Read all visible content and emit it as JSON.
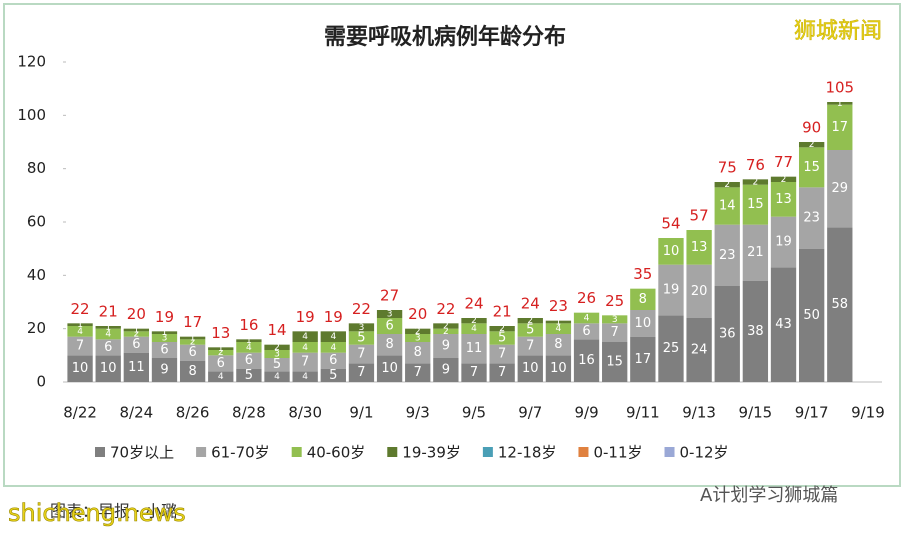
{
  "chart_data": {
    "type": "stacked_bar",
    "title": "需要呼吸机病例年龄分布",
    "categories": [
      "8/22",
      null,
      "8/24",
      null,
      "8/26",
      null,
      "8/28",
      null,
      "8/30",
      null,
      "9/1",
      null,
      "9/3",
      null,
      "9/5",
      null,
      "9/7",
      null,
      "9/9",
      null,
      "9/11",
      null,
      "9/13",
      null,
      "9/15",
      null,
      "9/17",
      null,
      "9/19"
    ],
    "series": [
      {
        "name": "70岁以上",
        "color": "#7f7f7f",
        "values": [
          10,
          10,
          11,
          9,
          8,
          4,
          5,
          4,
          4,
          5,
          7,
          10,
          7,
          9,
          7,
          7,
          10,
          10,
          16,
          15,
          17,
          25,
          24,
          36,
          38,
          43,
          50,
          58,
          null
        ]
      },
      {
        "name": "61-70岁",
        "color": "#a5a5a5",
        "values": [
          7,
          6,
          6,
          6,
          6,
          6,
          6,
          5,
          7,
          6,
          7,
          8,
          8,
          9,
          11,
          7,
          7,
          8,
          6,
          7,
          10,
          19,
          20,
          23,
          21,
          19,
          23,
          29,
          null
        ]
      },
      {
        "name": "40-60岁",
        "color": "#92bf50",
        "values": [
          4,
          4,
          2,
          3,
          2,
          2,
          4,
          3,
          4,
          4,
          5,
          6,
          3,
          2,
          4,
          5,
          5,
          4,
          4,
          3,
          8,
          10,
          13,
          14,
          15,
          13,
          15,
          17,
          null
        ]
      },
      {
        "name": "19-39岁",
        "color": "#5e7a2e",
        "values": [
          1,
          1,
          1,
          1,
          1,
          1,
          1,
          2,
          4,
          4,
          3,
          3,
          2,
          2,
          2,
          2,
          2,
          1,
          0,
          0,
          0,
          0,
          0,
          2,
          2,
          2,
          2,
          1,
          null
        ]
      },
      {
        "name": "12-18岁",
        "color": "#4a9fb6",
        "values": [
          0,
          0,
          0,
          0,
          0,
          0,
          0,
          0,
          0,
          0,
          0,
          0,
          0,
          0,
          0,
          0,
          0,
          0,
          0,
          0,
          0,
          0,
          0,
          0,
          0,
          0,
          0,
          0,
          null
        ]
      },
      {
        "name": "0-11岁",
        "color": "#e0813f",
        "values": [
          0,
          0,
          0,
          0,
          0,
          0,
          0,
          0,
          0,
          0,
          0,
          0,
          0,
          0,
          0,
          0,
          0,
          0,
          0,
          0,
          0,
          0,
          0,
          0,
          0,
          0,
          0,
          0,
          null
        ]
      },
      {
        "name": "0-12岁",
        "color": "#9aa8d6",
        "values": [
          0,
          0,
          0,
          0,
          0,
          0,
          0,
          0,
          0,
          0,
          0,
          0,
          0,
          0,
          0,
          0,
          0,
          0,
          0,
          0,
          0,
          0,
          0,
          0,
          0,
          0,
          0,
          0,
          null
        ]
      }
    ],
    "totals": [
      22,
      21,
      20,
      19,
      17,
      13,
      16,
      14,
      19,
      19,
      22,
      27,
      20,
      22,
      24,
      21,
      24,
      23,
      26,
      25,
      35,
      54,
      57,
      75,
      76,
      77,
      90,
      105,
      null
    ],
    "ylim": [
      0,
      120
    ],
    "yticks": [
      0,
      20,
      40,
      60,
      80,
      100,
      120
    ],
    "grid": false,
    "legend": "bottom"
  },
  "source": "图表：早报 · 小璐",
  "watermarks": [
    "狮城新闻",
    "shicheng.news",
    "A计划学习狮城篇"
  ]
}
